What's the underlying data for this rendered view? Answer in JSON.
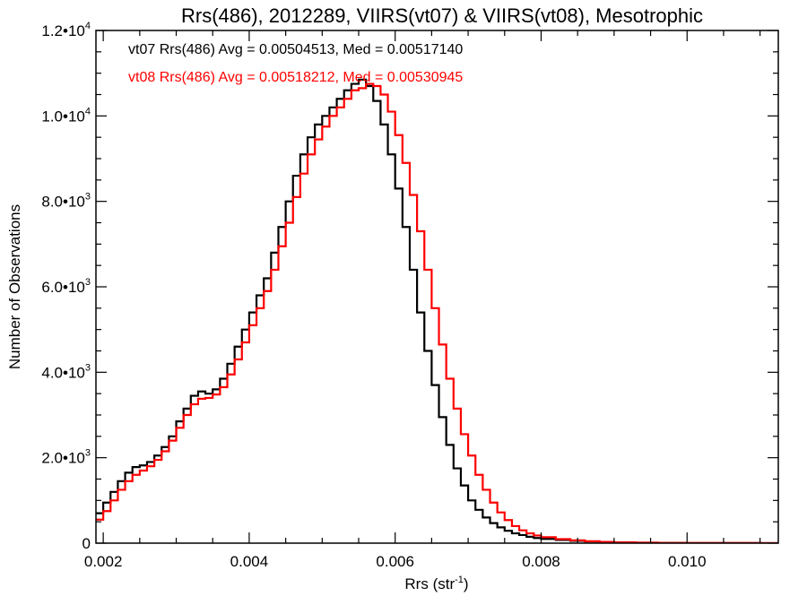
{
  "chart_data": {
    "type": "line",
    "title": "Rrs(486), 2012289, VIIRS(vt07) & VIIRS(vt08), Mesotrophic",
    "xlabel": "Rrs (str",
    "xlabel_sup": "-1",
    "xlabel_end": ")",
    "ylabel": "Number of Observations",
    "xlim": [
      0.0019,
      0.01125
    ],
    "ylim": [
      0,
      12000
    ],
    "x_ticks": [
      {
        "value": 0.002,
        "label": "0.002"
      },
      {
        "value": 0.004,
        "label": "0.004"
      },
      {
        "value": 0.006,
        "label": "0.006"
      },
      {
        "value": 0.008,
        "label": "0.008"
      },
      {
        "value": 0.01,
        "label": "0.010"
      }
    ],
    "y_ticks": [
      {
        "value": 0,
        "label": "0",
        "sup": ""
      },
      {
        "value": 2000,
        "label": "2.0•10",
        "sup": "3"
      },
      {
        "value": 4000,
        "label": "4.0•10",
        "sup": "3"
      },
      {
        "value": 6000,
        "label": "6.0•10",
        "sup": "3"
      },
      {
        "value": 8000,
        "label": "8.0•10",
        "sup": "3"
      },
      {
        "value": 10000,
        "label": "1.0•10",
        "sup": "4"
      },
      {
        "value": 12000,
        "label": "1.2•10",
        "sup": "4"
      }
    ],
    "x_minor_step": 0.0005,
    "y_minor_step": 500,
    "legend_placement": "top-left",
    "grid": false,
    "series": [
      {
        "name": "vt07 Rrs(486) Avg = 0.00504513, Med = 0.00517140",
        "color": "#000000",
        "x": [
          0.0019,
          0.002,
          0.0021,
          0.0022,
          0.0023,
          0.0024,
          0.0025,
          0.0026,
          0.0027,
          0.0028,
          0.0029,
          0.003,
          0.0031,
          0.0032,
          0.0033,
          0.0034,
          0.0035,
          0.0036,
          0.0037,
          0.0038,
          0.0039,
          0.004,
          0.0041,
          0.0042,
          0.0043,
          0.0044,
          0.0045,
          0.0046,
          0.0047,
          0.0048,
          0.0049,
          0.005,
          0.0051,
          0.0052,
          0.0053,
          0.0054,
          0.0055,
          0.0056,
          0.0057,
          0.0058,
          0.0059,
          0.006,
          0.0061,
          0.0062,
          0.0063,
          0.0064,
          0.0065,
          0.0066,
          0.0067,
          0.0068,
          0.0069,
          0.007,
          0.0071,
          0.0072,
          0.0073,
          0.0074,
          0.0075,
          0.0076,
          0.0077,
          0.0078,
          0.0079,
          0.008,
          0.0082,
          0.0084,
          0.0086,
          0.0088,
          0.009,
          0.0093,
          0.0096,
          0.01,
          0.0105,
          0.011,
          0.01125
        ],
        "y": [
          700,
          950,
          1200,
          1450,
          1650,
          1780,
          1820,
          1900,
          2050,
          2250,
          2500,
          2850,
          3150,
          3450,
          3550,
          3500,
          3600,
          3850,
          4200,
          4600,
          5000,
          5400,
          5800,
          6200,
          6800,
          7400,
          8000,
          8600,
          9100,
          9500,
          9800,
          10000,
          10200,
          10400,
          10600,
          10750,
          10850,
          10700,
          10350,
          9800,
          9100,
          8300,
          7400,
          6400,
          5400,
          4500,
          3700,
          2950,
          2300,
          1750,
          1350,
          1000,
          780,
          600,
          470,
          370,
          290,
          230,
          190,
          150,
          120,
          100,
          75,
          55,
          40,
          28,
          18,
          10,
          6,
          3,
          2,
          1,
          0
        ]
      },
      {
        "name": "vt08 Rrs(486) Avg = 0.00518212, Med = 0.00530945",
        "color": "#ff0000",
        "x": [
          0.0019,
          0.002,
          0.0021,
          0.0022,
          0.0023,
          0.0024,
          0.0025,
          0.0026,
          0.0027,
          0.0028,
          0.0029,
          0.003,
          0.0031,
          0.0032,
          0.0033,
          0.0034,
          0.0035,
          0.0036,
          0.0037,
          0.0038,
          0.0039,
          0.004,
          0.0041,
          0.0042,
          0.0043,
          0.0044,
          0.0045,
          0.0046,
          0.0047,
          0.0048,
          0.0049,
          0.005,
          0.0051,
          0.0052,
          0.0053,
          0.0054,
          0.0055,
          0.0056,
          0.0057,
          0.0058,
          0.0059,
          0.006,
          0.0061,
          0.0062,
          0.0063,
          0.0064,
          0.0065,
          0.0066,
          0.0067,
          0.0068,
          0.0069,
          0.007,
          0.0071,
          0.0072,
          0.0073,
          0.0074,
          0.0075,
          0.0076,
          0.0077,
          0.0078,
          0.0079,
          0.008,
          0.0082,
          0.0084,
          0.0086,
          0.0088,
          0.009,
          0.0093,
          0.0096,
          0.01,
          0.0105,
          0.011,
          0.01125
        ],
        "y": [
          550,
          750,
          1000,
          1250,
          1450,
          1600,
          1700,
          1800,
          1950,
          2150,
          2400,
          2700,
          3000,
          3250,
          3380,
          3400,
          3480,
          3650,
          3950,
          4300,
          4700,
          5100,
          5500,
          5900,
          6400,
          6950,
          7500,
          8100,
          8650,
          9100,
          9450,
          9750,
          10000,
          10200,
          10400,
          10600,
          10650,
          10750,
          10700,
          10500,
          10100,
          9550,
          8900,
          8150,
          7300,
          6400,
          5500,
          4650,
          3850,
          3150,
          2550,
          2050,
          1600,
          1250,
          950,
          720,
          540,
          400,
          300,
          230,
          180,
          140,
          95,
          65,
          45,
          30,
          20,
          12,
          7,
          4,
          2,
          1,
          0
        ]
      }
    ]
  }
}
